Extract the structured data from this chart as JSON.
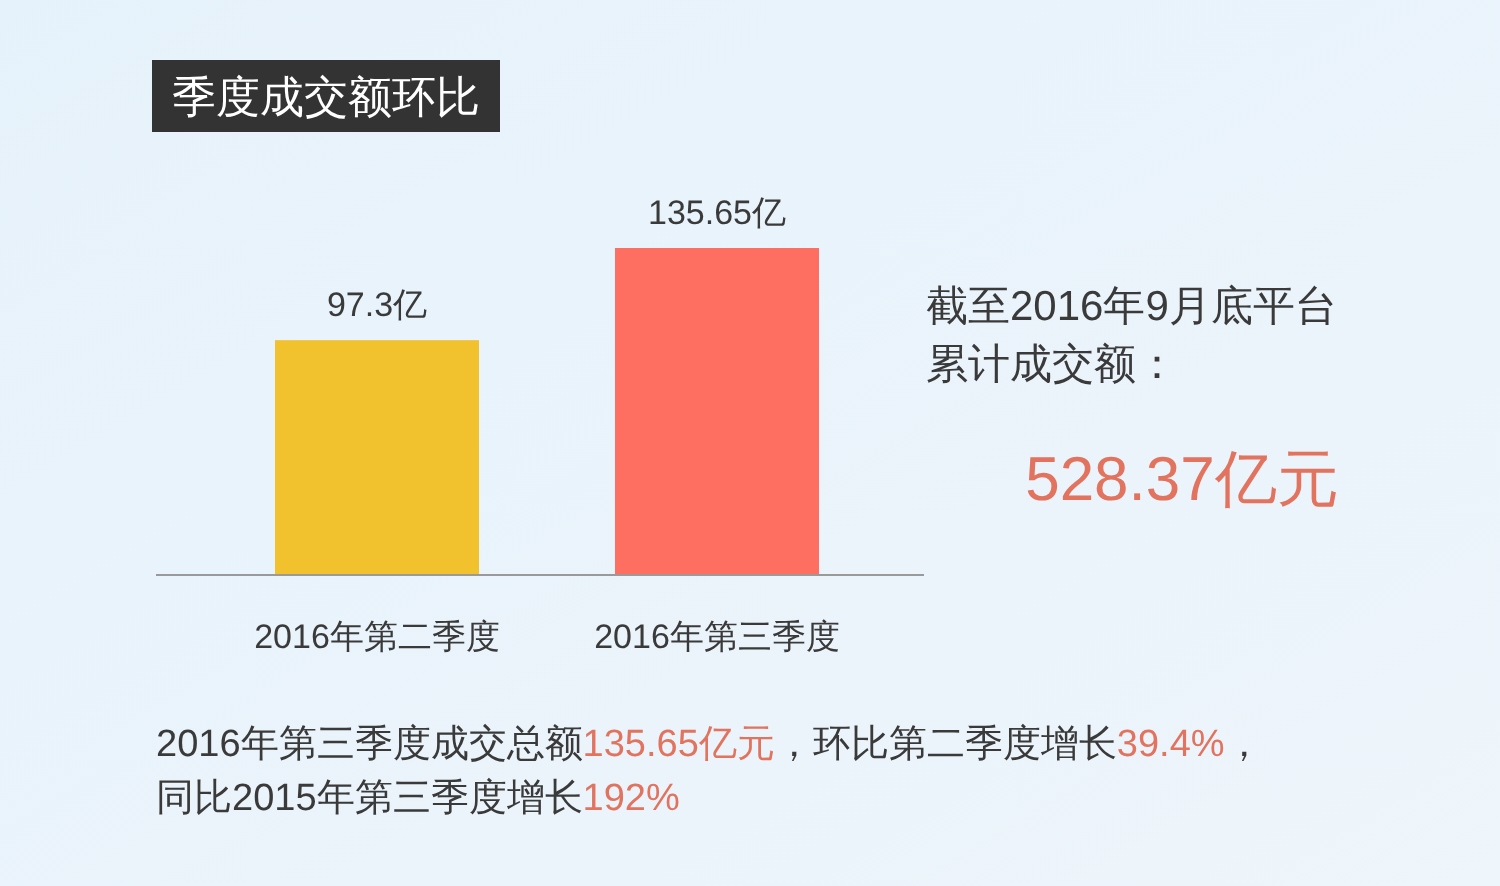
{
  "chart_data": {
    "type": "bar",
    "title": "季度成交额环比",
    "categories": [
      "2016年第二季度",
      "2016年第三季度"
    ],
    "values": [
      97.3,
      135.65
    ],
    "colors": [
      "#f2c12e",
      "#ff6f61"
    ],
    "value_labels": [
      "97.3亿",
      "135.65亿"
    ],
    "annotations": [
      "截至2016年9月底平台",
      "累计成交额：",
      "528.37亿元",
      "2016年第三季度成交总额135.65亿元，环比第二季度增长39.4%，",
      "同比2015年第三季度增长192%"
    ]
  }
}
